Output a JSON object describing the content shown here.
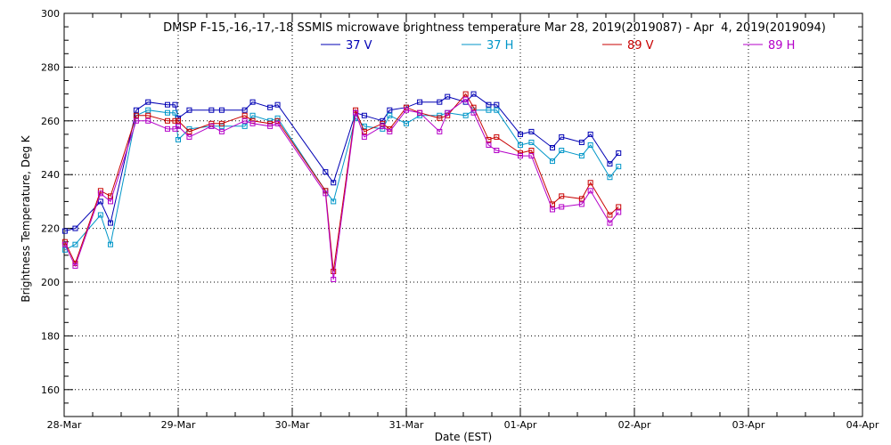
{
  "chart_data": {
    "type": "line",
    "title": "DMSP F-15,-16,-17,-18 SSMIS microwave brightness temperature Mar 28, 2019(2019087) - Apr  4, 2019(2019094)",
    "xlabel": "Date (EST)",
    "ylabel": "Brightness Temperature, Deg K",
    "ylim": [
      150,
      300
    ],
    "yticks": [
      160,
      180,
      200,
      220,
      240,
      260,
      280,
      300
    ],
    "xlim": [
      "2019-03-28",
      "2019-04-04"
    ],
    "xticks": [
      "28-Mar",
      "29-Mar",
      "30-Mar",
      "31-Mar",
      "01-Apr",
      "02-Apr",
      "03-Apr",
      "04-Apr"
    ],
    "grid": true,
    "legend_position": "top-center",
    "series": [
      {
        "name": "37 V",
        "color": "#0000b4",
        "points": [
          [
            "2019-03-28 00:10",
            219
          ],
          [
            "2019-03-28 02:20",
            220
          ],
          [
            "2019-03-28 07:40",
            230
          ],
          [
            "2019-03-28 09:45",
            222
          ],
          [
            "2019-03-28 15:10",
            264
          ],
          [
            "2019-03-28 17:40",
            267
          ],
          [
            "2019-03-28 21:45",
            266
          ],
          [
            "2019-03-28 23:20",
            266
          ],
          [
            "2019-03-29 00:00",
            261
          ],
          [
            "2019-03-29 02:20",
            264
          ],
          [
            "2019-03-29 07:00",
            264
          ],
          [
            "2019-03-29 09:10",
            264
          ],
          [
            "2019-03-29 14:00",
            264
          ],
          [
            "2019-03-29 15:40",
            267
          ],
          [
            "2019-03-29 19:20",
            265
          ],
          [
            "2019-03-29 20:55",
            266
          ],
          [
            "2019-03-30 07:00",
            241
          ],
          [
            "2019-03-30 08:40",
            237
          ],
          [
            "2019-03-30 13:20",
            263
          ],
          [
            "2019-03-30 15:10",
            262
          ],
          [
            "2019-03-30 19:00",
            260
          ],
          [
            "2019-03-30 20:30",
            264
          ],
          [
            "2019-03-31 00:00",
            265
          ],
          [
            "2019-03-31 02:50",
            267
          ],
          [
            "2019-03-31 07:00",
            267
          ],
          [
            "2019-03-31 08:40",
            269
          ],
          [
            "2019-03-31 12:30",
            267
          ],
          [
            "2019-03-31 14:10",
            270
          ],
          [
            "2019-03-31 17:20",
            266
          ],
          [
            "2019-03-31 19:00",
            266
          ],
          [
            "2019-04-01 00:00",
            255
          ],
          [
            "2019-04-01 02:20",
            256
          ],
          [
            "2019-04-01 06:45",
            250
          ],
          [
            "2019-04-01 08:40",
            254
          ],
          [
            "2019-04-01 12:55",
            252
          ],
          [
            "2019-04-01 14:45",
            255
          ],
          [
            "2019-04-01 18:50",
            244
          ],
          [
            "2019-04-01 20:40",
            248
          ]
        ]
      },
      {
        "name": "37 H",
        "color": "#0096c8",
        "points": [
          [
            "2019-03-28 00:10",
            212
          ],
          [
            "2019-03-28 02:20",
            214
          ],
          [
            "2019-03-28 07:40",
            225
          ],
          [
            "2019-03-28 09:45",
            214
          ],
          [
            "2019-03-28 15:10",
            262
          ],
          [
            "2019-03-28 17:40",
            264
          ],
          [
            "2019-03-28 21:45",
            263
          ],
          [
            "2019-03-28 23:20",
            263
          ],
          [
            "2019-03-29 00:00",
            253
          ],
          [
            "2019-03-29 02:20",
            257
          ],
          [
            "2019-03-29 07:00",
            258
          ],
          [
            "2019-03-29 09:10",
            258
          ],
          [
            "2019-03-29 14:00",
            258
          ],
          [
            "2019-03-29 15:40",
            262
          ],
          [
            "2019-03-29 19:20",
            260
          ],
          [
            "2019-03-29 20:55",
            261
          ],
          [
            "2019-03-30 07:00",
            234
          ],
          [
            "2019-03-30 08:40",
            230
          ],
          [
            "2019-03-30 13:20",
            261
          ],
          [
            "2019-03-30 15:10",
            258
          ],
          [
            "2019-03-30 19:00",
            257
          ],
          [
            "2019-03-30 20:30",
            262
          ],
          [
            "2019-03-31 00:00",
            259
          ],
          [
            "2019-03-31 02:50",
            262
          ],
          [
            "2019-03-31 07:00",
            262
          ],
          [
            "2019-03-31 08:40",
            263
          ],
          [
            "2019-03-31 12:30",
            262
          ],
          [
            "2019-03-31 14:10",
            264
          ],
          [
            "2019-03-31 17:20",
            264
          ],
          [
            "2019-03-31 19:00",
            264
          ],
          [
            "2019-04-01 00:00",
            251
          ],
          [
            "2019-04-01 02:20",
            252
          ],
          [
            "2019-04-01 06:45",
            245
          ],
          [
            "2019-04-01 08:40",
            249
          ],
          [
            "2019-04-01 12:55",
            247
          ],
          [
            "2019-04-01 14:45",
            251
          ],
          [
            "2019-04-01 18:50",
            239
          ],
          [
            "2019-04-01 20:40",
            243
          ]
        ]
      },
      {
        "name": "89 V",
        "color": "#c80000",
        "points": [
          [
            "2019-03-28 00:10",
            215
          ],
          [
            "2019-03-28 02:20",
            207
          ],
          [
            "2019-03-28 07:40",
            234
          ],
          [
            "2019-03-28 09:45",
            232
          ],
          [
            "2019-03-28 15:10",
            262
          ],
          [
            "2019-03-28 17:40",
            262
          ],
          [
            "2019-03-28 21:45",
            260
          ],
          [
            "2019-03-28 23:20",
            260
          ],
          [
            "2019-03-29 00:00",
            260
          ],
          [
            "2019-03-29 02:20",
            256
          ],
          [
            "2019-03-29 07:00",
            259
          ],
          [
            "2019-03-29 09:10",
            259
          ],
          [
            "2019-03-29 14:00",
            262
          ],
          [
            "2019-03-29 15:40",
            260
          ],
          [
            "2019-03-29 19:20",
            259
          ],
          [
            "2019-03-29 20:55",
            260
          ],
          [
            "2019-03-30 07:00",
            234
          ],
          [
            "2019-03-30 08:40",
            204
          ],
          [
            "2019-03-30 13:20",
            264
          ],
          [
            "2019-03-30 15:10",
            256
          ],
          [
            "2019-03-30 19:00",
            259
          ],
          [
            "2019-03-30 20:30",
            257
          ],
          [
            "2019-03-31 00:00",
            265
          ],
          [
            "2019-03-31 02:50",
            263
          ],
          [
            "2019-03-31 07:00",
            261
          ],
          [
            "2019-03-31 08:40",
            262
          ],
          [
            "2019-03-31 12:30",
            270
          ],
          [
            "2019-03-31 14:10",
            265
          ],
          [
            "2019-03-31 17:20",
            253
          ],
          [
            "2019-03-31 19:00",
            254
          ],
          [
            "2019-04-01 00:00",
            248
          ],
          [
            "2019-04-01 02:20",
            249
          ],
          [
            "2019-04-01 06:45",
            229
          ],
          [
            "2019-04-01 08:40",
            232
          ],
          [
            "2019-04-01 12:55",
            231
          ],
          [
            "2019-04-01 14:45",
            237
          ],
          [
            "2019-04-01 18:50",
            225
          ],
          [
            "2019-04-01 20:40",
            228
          ]
        ]
      },
      {
        "name": "89 H",
        "color": "#b400c8",
        "points": [
          [
            "2019-03-28 00:10",
            214
          ],
          [
            "2019-03-28 02:20",
            206
          ],
          [
            "2019-03-28 07:40",
            233
          ],
          [
            "2019-03-28 09:45",
            230
          ],
          [
            "2019-03-28 15:10",
            260
          ],
          [
            "2019-03-28 17:40",
            260
          ],
          [
            "2019-03-28 21:45",
            257
          ],
          [
            "2019-03-28 23:20",
            257
          ],
          [
            "2019-03-29 00:00",
            258
          ],
          [
            "2019-03-29 02:20",
            254
          ],
          [
            "2019-03-29 07:00",
            258
          ],
          [
            "2019-03-29 09:10",
            256
          ],
          [
            "2019-03-29 14:00",
            260
          ],
          [
            "2019-03-29 15:40",
            259
          ],
          [
            "2019-03-29 19:20",
            258
          ],
          [
            "2019-03-29 20:55",
            259
          ],
          [
            "2019-03-30 07:00",
            233
          ],
          [
            "2019-03-30 08:40",
            201
          ],
          [
            "2019-03-30 13:20",
            263
          ],
          [
            "2019-03-30 15:10",
            254
          ],
          [
            "2019-03-30 19:00",
            258
          ],
          [
            "2019-03-30 20:30",
            256
          ],
          [
            "2019-03-31 00:00",
            264
          ],
          [
            "2019-03-31 02:50",
            263
          ],
          [
            "2019-03-31 07:00",
            256
          ],
          [
            "2019-03-31 08:40",
            263
          ],
          [
            "2019-03-31 12:30",
            268
          ],
          [
            "2019-03-31 14:10",
            263
          ],
          [
            "2019-03-31 17:20",
            251
          ],
          [
            "2019-03-31 19:00",
            249
          ],
          [
            "2019-04-01 00:00",
            247
          ],
          [
            "2019-04-01 02:20",
            247
          ],
          [
            "2019-04-01 06:45",
            227
          ],
          [
            "2019-04-01 08:40",
            228
          ],
          [
            "2019-04-01 12:55",
            229
          ],
          [
            "2019-04-01 14:45",
            234
          ],
          [
            "2019-04-01 18:50",
            222
          ],
          [
            "2019-04-01 20:40",
            226
          ]
        ]
      }
    ]
  }
}
